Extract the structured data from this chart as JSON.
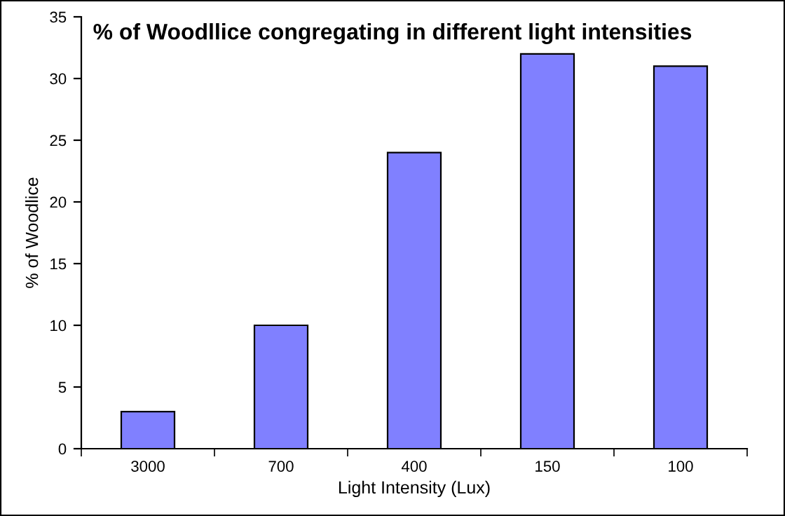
{
  "chart_data": {
    "type": "bar",
    "title": "% of Woodllice congregating in different light intensities",
    "xlabel": "Light Intensity (Lux)",
    "ylabel": "% of Woodlice",
    "categories": [
      "3000",
      "700",
      "400",
      "150",
      "100"
    ],
    "values": [
      3,
      10,
      24,
      32,
      31
    ],
    "color": "#8080ff",
    "ylim": [
      0,
      35
    ],
    "yticks": [
      0,
      5,
      10,
      15,
      20,
      25,
      30,
      35
    ],
    "grid": false,
    "legend": false
  }
}
